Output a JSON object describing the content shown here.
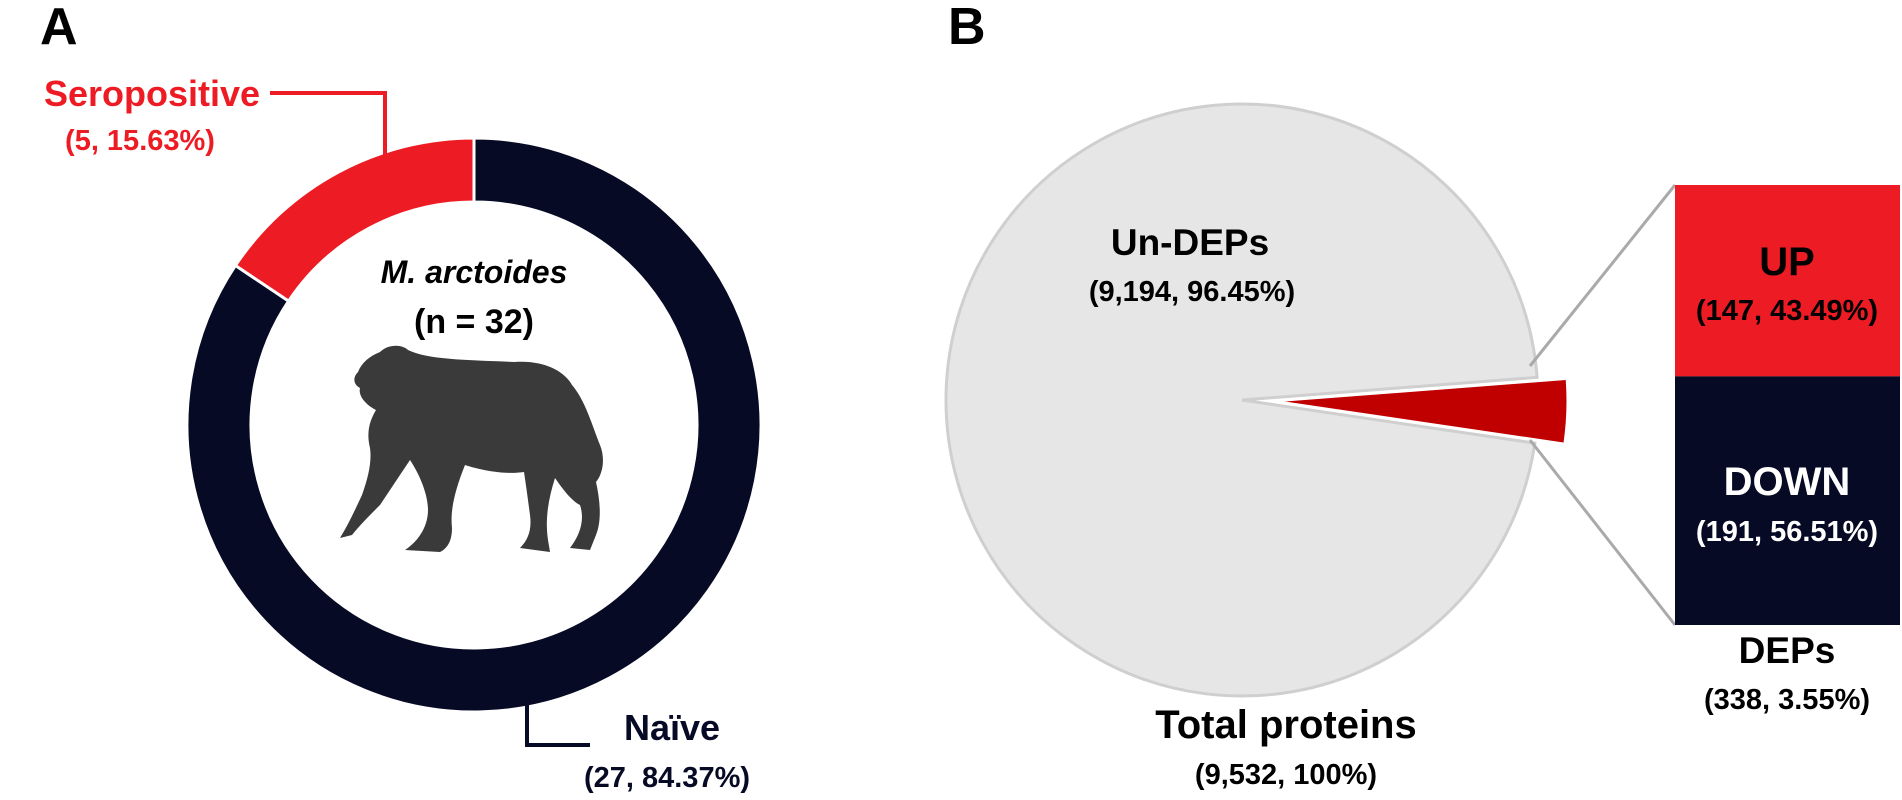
{
  "colors": {
    "seropositive": "#ed1c24",
    "naive": "#070a24",
    "un_deps": "#e6e6e6",
    "deps_slice": "#c00000",
    "up": "#ed1c24",
    "down": "#070a24",
    "connector": "#aaaaaa"
  },
  "panel_a": {
    "letter": "A",
    "center_title": "M. arctoides",
    "center_subtitle": "(n = 32)",
    "icon": "macaque-silhouette-icon"
  },
  "panel_b": {
    "letter": "B",
    "total_label": "Total proteins",
    "total_value": "(9,532, 100%)",
    "deps_label": "DEPs",
    "deps_value": "(338, 3.55%)"
  },
  "chart_data": [
    {
      "type": "pie",
      "subtype": "donut",
      "series": [
        {
          "name": "Seropositive",
          "value": 5,
          "percent": 15.63,
          "label": "Seropositive",
          "value_label": "(5, 15.63%)"
        },
        {
          "name": "Naïve",
          "value": 27,
          "percent": 84.37,
          "label": "Naïve",
          "value_label": "(27, 84.37%)"
        }
      ]
    },
    {
      "type": "pie",
      "series": [
        {
          "name": "Un-DEPs",
          "value": 9194,
          "percent": 96.45,
          "label": "Un-DEPs",
          "value_label": "(9,194, 96.45%)"
        },
        {
          "name": "DEPs",
          "value": 338,
          "percent": 3.55,
          "label": "",
          "value_label": ""
        }
      ]
    },
    {
      "type": "bar",
      "stacked": true,
      "series": [
        {
          "name": "UP",
          "value": 147,
          "percent": 43.49,
          "label": "UP",
          "value_label": "(147, 43.49%)"
        },
        {
          "name": "DOWN",
          "value": 191,
          "percent": 56.51,
          "label": "DOWN",
          "value_label": "(191, 56.51%)"
        }
      ]
    }
  ]
}
